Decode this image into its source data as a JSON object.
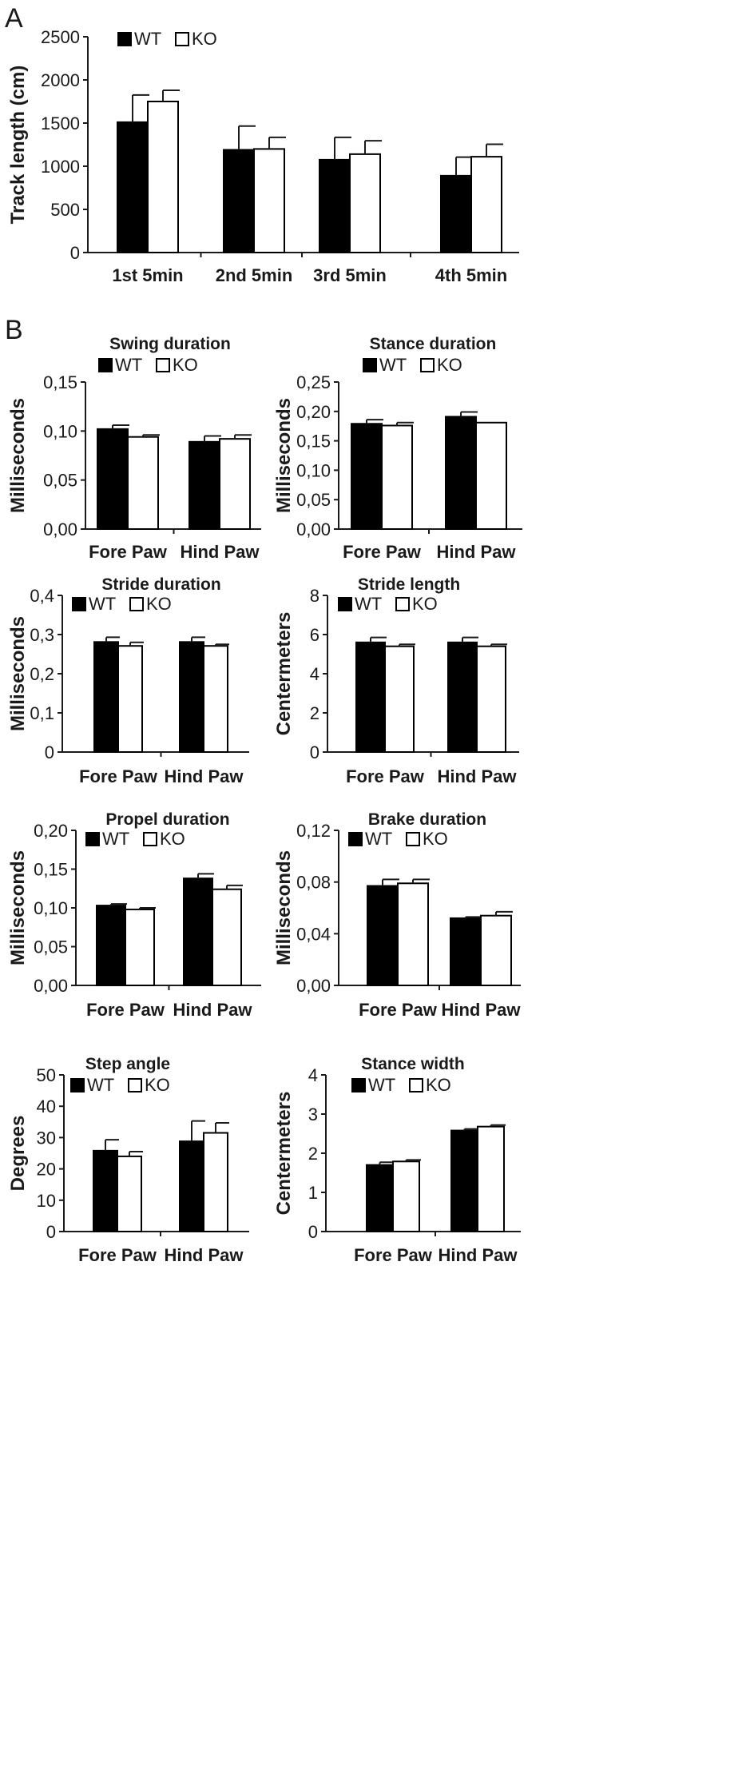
{
  "panel_letters": [
    "A",
    "B"
  ],
  "legend": {
    "wt": "WT",
    "ko": "KO"
  },
  "colors": {
    "wt": "#000000",
    "ko": "#ffffff",
    "stroke": "#000000"
  },
  "chart_data": [
    {
      "id": "track",
      "panel": "A",
      "type": "bar",
      "title": "",
      "xlabel": "",
      "ylabel": "Track length (cm)",
      "categories": [
        "1st 5min",
        "2nd 5min",
        "3rd 5min",
        "4th 5min"
      ],
      "series": [
        {
          "name": "WT",
          "values": [
            1510,
            1190,
            1075,
            890
          ],
          "errors": [
            315,
            275,
            260,
            215
          ]
        },
        {
          "name": "KO",
          "values": [
            1750,
            1200,
            1140,
            1110
          ],
          "errors": [
            130,
            135,
            155,
            145
          ]
        }
      ],
      "yticks": [
        "0",
        "500",
        "1000",
        "1500",
        "2000",
        "2500"
      ],
      "ylim": [
        0,
        2500
      ],
      "grid": false,
      "legend_position": "top-left"
    },
    {
      "id": "swing",
      "panel": "B",
      "type": "bar",
      "title": "Swing duration",
      "xlabel": "",
      "ylabel": "Milliseconds",
      "categories": [
        "Fore Paw",
        "Hind Paw"
      ],
      "series": [
        {
          "name": "WT",
          "values": [
            0.102,
            0.089
          ],
          "errors": [
            0.004,
            0.006
          ]
        },
        {
          "name": "KO",
          "values": [
            0.094,
            0.092
          ],
          "errors": [
            0.002,
            0.004
          ]
        }
      ],
      "yticks": [
        "0,00",
        "0,05",
        "0,10",
        "0,15"
      ],
      "ylim": [
        0,
        0.15
      ],
      "grid": false,
      "legend_position": "top"
    },
    {
      "id": "stance",
      "panel": "B",
      "type": "bar",
      "title": "Stance duration",
      "xlabel": "",
      "ylabel": "Milliseconds",
      "categories": [
        "Fore Paw",
        "Hind Paw"
      ],
      "series": [
        {
          "name": "WT",
          "values": [
            0.179,
            0.191
          ],
          "errors": [
            0.007,
            0.008
          ]
        },
        {
          "name": "KO",
          "values": [
            0.176,
            0.181
          ],
          "errors": [
            0.005,
            0.0
          ]
        }
      ],
      "yticks": [
        "0,00",
        "0,05",
        "0,10",
        "0,15",
        "0,20",
        "0,25"
      ],
      "ylim": [
        0,
        0.25
      ],
      "grid": false,
      "legend_position": "top"
    },
    {
      "id": "stride-duration",
      "panel": "B",
      "type": "bar",
      "title": "Stride duration",
      "xlabel": "",
      "ylabel": "Milliseconds",
      "categories": [
        "Fore Paw",
        "Hind Paw"
      ],
      "series": [
        {
          "name": "WT",
          "values": [
            0.281,
            0.281
          ],
          "errors": [
            0.012,
            0.012
          ]
        },
        {
          "name": "KO",
          "values": [
            0.271,
            0.271
          ],
          "errors": [
            0.009,
            0.004
          ]
        }
      ],
      "yticks": [
        "0",
        "0,1",
        "0,2",
        "0,3",
        "0,4"
      ],
      "ylim": [
        0,
        0.4
      ],
      "grid": false,
      "legend_position": "top-left"
    },
    {
      "id": "stride-length",
      "panel": "B",
      "type": "bar",
      "title": "Stride length",
      "xlabel": "",
      "ylabel": "Centermeters",
      "categories": [
        "Fore Paw",
        "Hind Paw"
      ],
      "series": [
        {
          "name": "WT",
          "values": [
            5.6,
            5.6
          ],
          "errors": [
            0.25,
            0.25
          ]
        },
        {
          "name": "KO",
          "values": [
            5.4,
            5.4
          ],
          "errors": [
            0.1,
            0.1
          ]
        }
      ],
      "yticks": [
        "0",
        "2",
        "4",
        "6",
        "8"
      ],
      "ylim": [
        0,
        8
      ],
      "grid": false,
      "legend_position": "top-left"
    },
    {
      "id": "propel",
      "panel": "B",
      "type": "bar",
      "title": "Propel duration",
      "xlabel": "",
      "ylabel": "Milliseconds",
      "categories": [
        "Fore Paw",
        "Hind Paw"
      ],
      "series": [
        {
          "name": "WT",
          "values": [
            0.103,
            0.138
          ],
          "errors": [
            0.002,
            0.006
          ]
        },
        {
          "name": "KO",
          "values": [
            0.098,
            0.124
          ],
          "errors": [
            0.002,
            0.005
          ]
        }
      ],
      "yticks": [
        "0,00",
        "0,05",
        "0,10",
        "0,15",
        "0,20"
      ],
      "ylim": [
        0,
        0.2
      ],
      "grid": false,
      "legend_position": "top-left"
    },
    {
      "id": "brake",
      "panel": "B",
      "type": "bar",
      "title": "Brake duration",
      "xlabel": "",
      "ylabel": "Milliseconds",
      "categories": [
        "Fore Paw",
        "Hind Paw"
      ],
      "series": [
        {
          "name": "WT",
          "values": [
            0.077,
            0.052
          ],
          "errors": [
            0.005,
            0.001
          ]
        },
        {
          "name": "KO",
          "values": [
            0.079,
            0.054
          ],
          "errors": [
            0.003,
            0.003
          ]
        }
      ],
      "yticks": [
        "0,00",
        "0,04",
        "0,08",
        "0,12"
      ],
      "ylim": [
        0,
        0.12
      ],
      "grid": false,
      "legend_position": "top-left"
    },
    {
      "id": "step-angle",
      "panel": "B",
      "type": "bar",
      "title": "Step angle",
      "xlabel": "",
      "ylabel": "Degrees",
      "categories": [
        "Fore Paw",
        "Hind Paw"
      ],
      "series": [
        {
          "name": "WT",
          "values": [
            25.8,
            28.8
          ],
          "errors": [
            3.5,
            6.5
          ]
        },
        {
          "name": "KO",
          "values": [
            24.0,
            31.5
          ],
          "errors": [
            1.5,
            3.2
          ]
        }
      ],
      "yticks": [
        "0",
        "10",
        "20",
        "30",
        "40",
        "50"
      ],
      "ylim": [
        0,
        50
      ],
      "grid": false,
      "legend_position": "top-left"
    },
    {
      "id": "stance-width",
      "panel": "B",
      "type": "bar",
      "title": "Stance width",
      "xlabel": "",
      "ylabel": "Centermeters",
      "categories": [
        "Fore Paw",
        "Hind Paw"
      ],
      "series": [
        {
          "name": "WT",
          "values": [
            1.7,
            2.58
          ],
          "errors": [
            0.07,
            0.04
          ]
        },
        {
          "name": "KO",
          "values": [
            1.79,
            2.68
          ],
          "errors": [
            0.04,
            0.04
          ]
        }
      ],
      "yticks": [
        "0",
        "1",
        "2",
        "3",
        "4"
      ],
      "ylim": [
        0,
        4
      ],
      "grid": false,
      "legend_position": "top-left"
    }
  ]
}
